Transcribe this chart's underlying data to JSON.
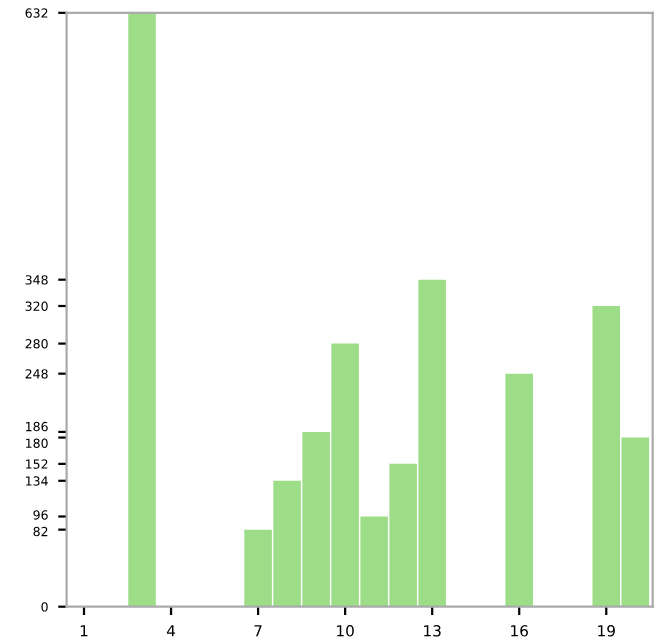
{
  "chart_data": {
    "type": "bar",
    "categories": [
      "1",
      null,
      null,
      "4",
      null,
      null,
      "7",
      null,
      null,
      "10",
      null,
      null,
      "13",
      null,
      null,
      "16",
      null,
      null,
      "19",
      null
    ],
    "values": [
      0,
      0,
      632,
      0,
      0,
      0,
      82,
      134,
      186,
      280,
      96,
      152,
      348,
      0,
      0,
      248,
      0,
      0,
      320,
      180
    ],
    "color": "#9ddd88",
    "ylim": [
      0,
      632
    ],
    "yticks": [
      0,
      82,
      96,
      134,
      152,
      180,
      186,
      248,
      280,
      320,
      348,
      632
    ],
    "grid": false
  }
}
